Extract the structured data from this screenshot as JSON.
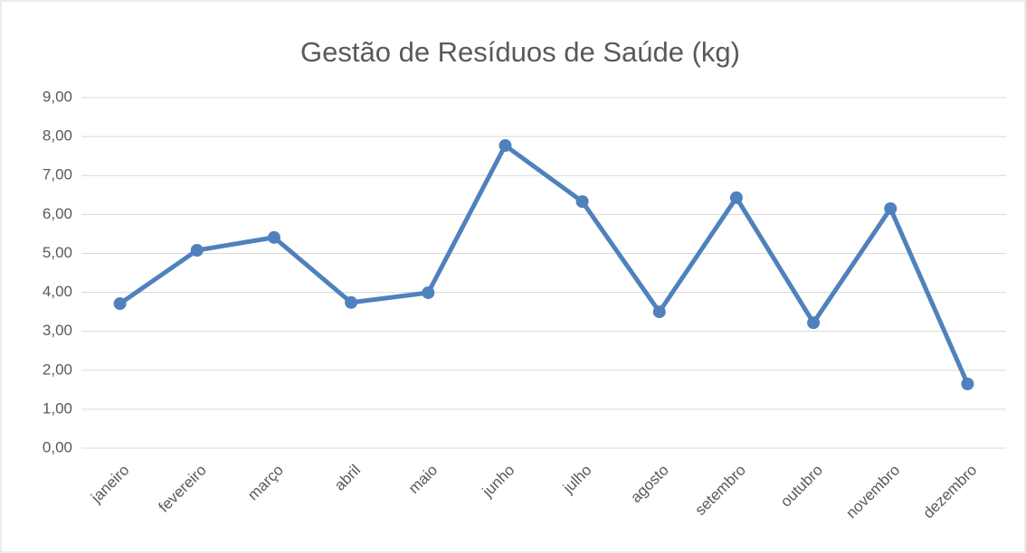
{
  "chart_data": {
    "type": "line",
    "title": "Gestão de Resíduos de Saúde (kg)",
    "categories": [
      "janeiro",
      "fevereiro",
      "março",
      "abril",
      "maio",
      "junho",
      "julho",
      "agosto",
      "setembro",
      "outubro",
      "novembro",
      "dezembro"
    ],
    "series": [
      {
        "name": "Gestão de Resíduos de Saúde (kg)",
        "color": "#4f81bd",
        "values": [
          3.71,
          5.08,
          5.41,
          3.74,
          3.99,
          7.77,
          6.33,
          3.5,
          6.43,
          3.22,
          6.15,
          1.65
        ]
      }
    ],
    "ylim": [
      0,
      9
    ],
    "yticks": [
      {
        "value": 0,
        "label": "0,00"
      },
      {
        "value": 1,
        "label": "1,00"
      },
      {
        "value": 2,
        "label": "2,00"
      },
      {
        "value": 3,
        "label": "3,00"
      },
      {
        "value": 4,
        "label": "4,00"
      },
      {
        "value": 5,
        "label": "5,00"
      },
      {
        "value": 6,
        "label": "6,00"
      },
      {
        "value": 7,
        "label": "7,00"
      },
      {
        "value": 8,
        "label": "8,00"
      },
      {
        "value": 9,
        "label": "9,00"
      }
    ],
    "grid": true
  }
}
